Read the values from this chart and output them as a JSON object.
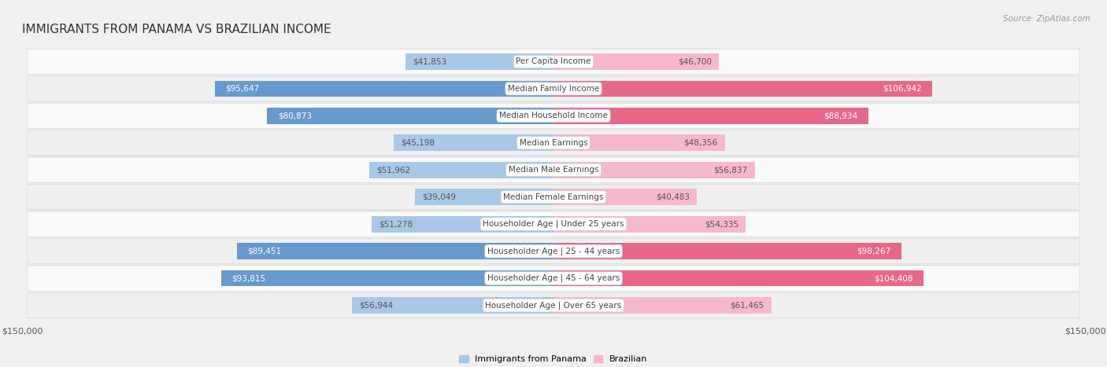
{
  "title": "IMMIGRANTS FROM PANAMA VS BRAZILIAN INCOME",
  "source": "Source: ZipAtlas.com",
  "categories": [
    "Per Capita Income",
    "Median Family Income",
    "Median Household Income",
    "Median Earnings",
    "Median Male Earnings",
    "Median Female Earnings",
    "Householder Age | Under 25 years",
    "Householder Age | 25 - 44 years",
    "Householder Age | 45 - 64 years",
    "Householder Age | Over 65 years"
  ],
  "panama_values": [
    41853,
    95647,
    80873,
    45198,
    51962,
    39049,
    51278,
    89451,
    93815,
    56944
  ],
  "brazilian_values": [
    46700,
    106942,
    88934,
    48356,
    56837,
    40483,
    54335,
    98267,
    104408,
    61465
  ],
  "panama_labels": [
    "$41,853",
    "$95,647",
    "$80,873",
    "$45,198",
    "$51,962",
    "$39,049",
    "$51,278",
    "$89,451",
    "$93,815",
    "$56,944"
  ],
  "brazilian_labels": [
    "$46,700",
    "$106,942",
    "$88,934",
    "$48,356",
    "$56,837",
    "$40,483",
    "$54,335",
    "$98,267",
    "$104,408",
    "$61,465"
  ],
  "panama_color_light": "#a8c8e8",
  "panama_color_dark": "#6699cc",
  "brazilian_color_light": "#f7b8cc",
  "brazilian_color_dark": "#e8688a",
  "max_value": 150000,
  "bar_height": 0.6,
  "background_color": "#f0f0f0",
  "row_bg_even": "#fafafa",
  "row_bg_odd": "#efefef",
  "title_fontsize": 11,
  "label_fontsize": 7.5,
  "category_fontsize": 7.5,
  "axis_label_fontsize": 8,
  "legend_fontsize": 8,
  "white_label_threshold": 78000
}
